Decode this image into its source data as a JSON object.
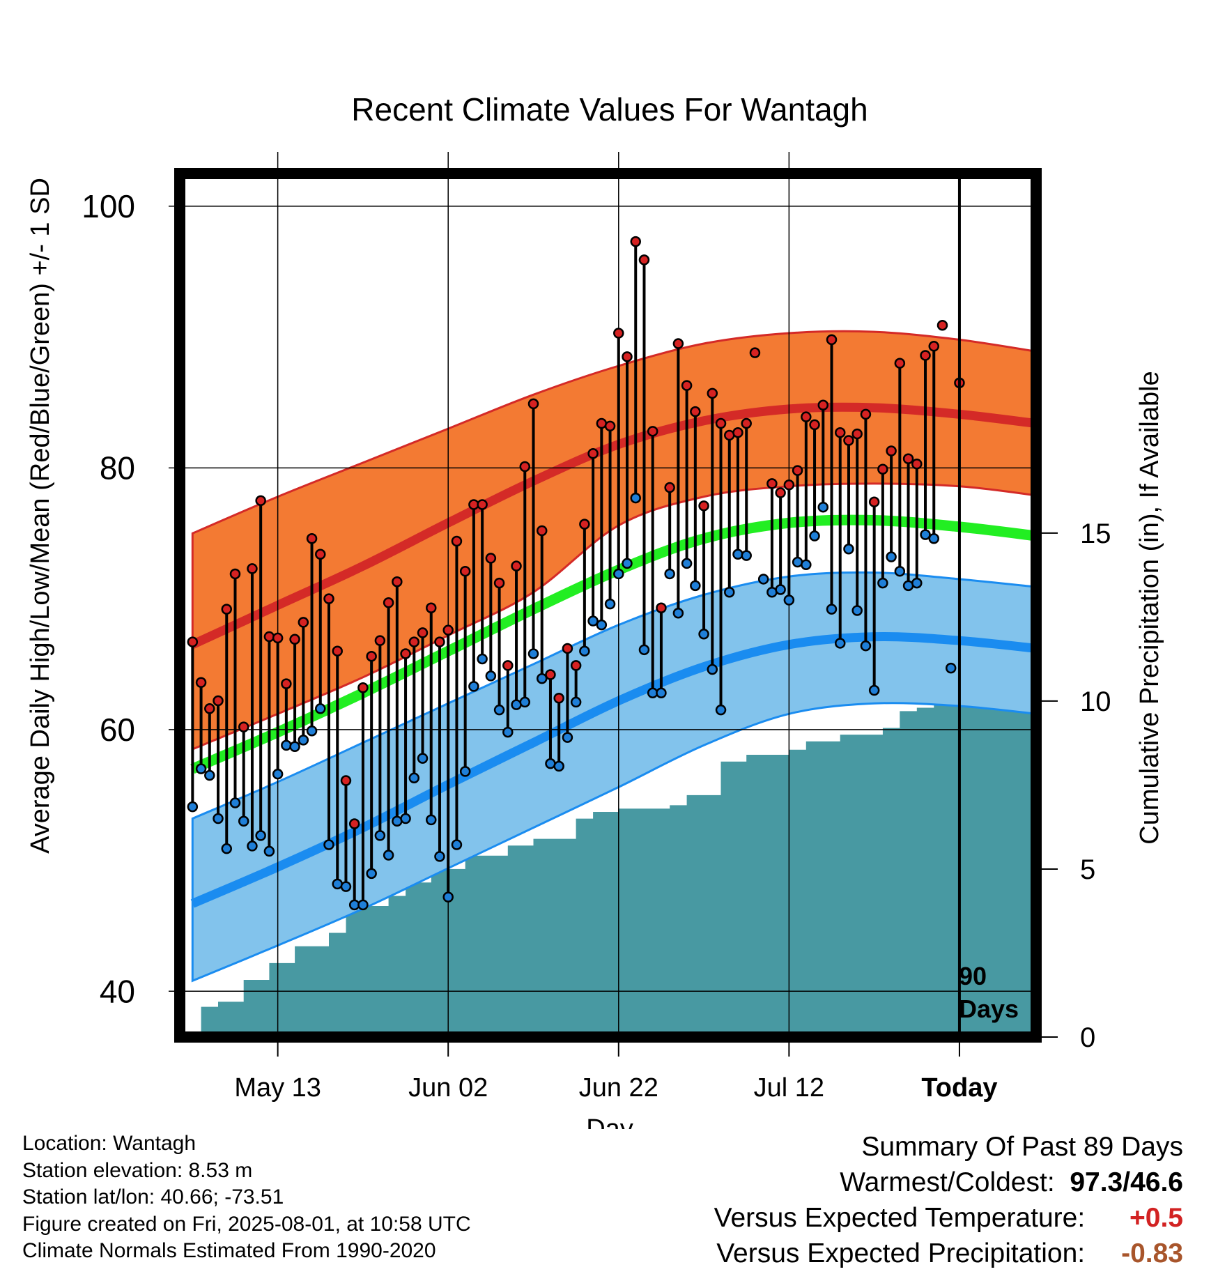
{
  "title": "Recent Climate Values For Wantagh",
  "ylabel_left": "Average Daily High/Low/Mean (Red/Blue/Green) +/- 1 SD",
  "ylabel_right": "Cumulative Precipitation (in), If Available",
  "xlabel": "Day",
  "today_label": "Today",
  "period_label_line1": "90",
  "period_label_line2": "Days",
  "info": {
    "location": "Location: Wantagh",
    "elevation": "Station elevation: 8.53 m",
    "latlon": "Station lat/lon: 40.66; -73.51",
    "created": "Figure created on Fri, 2025-08-01, at 10:58 UTC",
    "normals": "Climate Normals Estimated From 1990-2020"
  },
  "summary": {
    "heading": "Summary Of Past 89 Days",
    "extremes_label": "Warmest/Coldest:",
    "extremes_value": "97.3/46.6",
    "temp_label": "Versus Expected Temperature:",
    "temp_value": "+0.5",
    "precip_label": "Versus Expected Precipitation:",
    "precip_value": "-0.83"
  },
  "colors": {
    "high_band": "#f37a33",
    "high_line": "#d42a27",
    "mean_line": "#22ee22",
    "low_band": "#82c3ec",
    "low_line": "#1a8cf0",
    "precip": "#4899a2",
    "high_dot": "#d62222",
    "low_dot": "#1f7fd8",
    "positive": "#d22222",
    "negative": "#a8552b"
  },
  "chart_data": {
    "type": "line",
    "x_unit": "days relative to today (0 = Jul 31)",
    "xlim": [
      -91.5,
      9
    ],
    "ylim_temp": [
      36.5,
      102.5
    ],
    "ylim_precip": [
      0,
      25.7
    ],
    "yticks_temp": [
      40,
      60,
      80,
      100
    ],
    "yticks_precip": [
      0,
      5,
      10,
      15
    ],
    "x_ticks": [
      {
        "x": -80,
        "label": "May 13"
      },
      {
        "x": -60,
        "label": "Jun 02"
      },
      {
        "x": -40,
        "label": "Jun 22"
      },
      {
        "x": -20,
        "label": "Jul 12"
      },
      {
        "x": 0,
        "label": "Today"
      }
    ],
    "normals": {
      "x": [
        -90,
        -80,
        -70,
        -60,
        -50,
        -40,
        -30,
        -20,
        -10,
        0,
        9
      ],
      "high_plus_sd": [
        75.0,
        77.8,
        80.4,
        83.0,
        85.6,
        87.8,
        89.5,
        90.3,
        90.4,
        89.8,
        88.9
      ],
      "high_mean": [
        66.5,
        69.5,
        72.5,
        75.8,
        79.0,
        81.8,
        83.6,
        84.5,
        84.6,
        84.1,
        83.4
      ],
      "high_minus_sd": [
        58.5,
        61.2,
        64.0,
        67.2,
        70.5,
        75.6,
        77.8,
        78.6,
        78.8,
        78.6,
        77.9
      ],
      "mean": [
        57.0,
        59.8,
        62.8,
        66.0,
        69.2,
        72.2,
        74.6,
        75.8,
        76.0,
        75.5,
        74.8
      ],
      "low_plus_sd": [
        53.2,
        56.0,
        59.0,
        62.0,
        65.0,
        68.0,
        70.3,
        71.7,
        72.0,
        71.5,
        70.9
      ],
      "low_mean": [
        46.7,
        49.5,
        52.5,
        55.8,
        59.0,
        62.2,
        64.8,
        66.5,
        67.1,
        66.8,
        66.2
      ],
      "low_minus_sd": [
        40.8,
        43.5,
        46.3,
        49.4,
        52.5,
        55.6,
        58.8,
        61.2,
        62.0,
        61.8,
        61.2
      ]
    },
    "observations": {
      "start_x": -90,
      "high": [
        66.7,
        63.6,
        61.6,
        62.2,
        69.2,
        71.9,
        60.2,
        72.3,
        77.5,
        67.1,
        67.0,
        63.5,
        66.9,
        68.2,
        74.6,
        73.4,
        70.0,
        66.0,
        56.1,
        52.8,
        63.2,
        65.6,
        66.8,
        69.7,
        71.3,
        65.8,
        66.7,
        67.4,
        69.3,
        66.7,
        67.6,
        74.4,
        72.1,
        77.2,
        77.2,
        73.1,
        71.2,
        64.9,
        72.5,
        80.1,
        84.9,
        75.2,
        64.2,
        62.4,
        66.2,
        64.9,
        75.7,
        81.1,
        83.4,
        83.2,
        90.3,
        88.5,
        97.3,
        95.9,
        82.8,
        69.3,
        78.5,
        89.5,
        86.3,
        84.3,
        77.1,
        85.7,
        83.4,
        82.5,
        82.7,
        83.4,
        88.8,
        null,
        78.8,
        78.1,
        78.7,
        79.8,
        83.9,
        83.3,
        84.8,
        89.8,
        82.7,
        82.1,
        82.6,
        84.1,
        77.4,
        79.9,
        81.3,
        88.0,
        80.7,
        80.3,
        88.6,
        89.3,
        90.9,
        null,
        86.5
      ],
      "low": [
        54.1,
        57.0,
        56.5,
        53.2,
        50.9,
        54.4,
        53.0,
        51.1,
        51.9,
        50.7,
        56.6,
        58.8,
        58.7,
        59.2,
        59.9,
        61.6,
        51.2,
        48.2,
        48.0,
        46.6,
        46.6,
        49.0,
        51.9,
        50.4,
        53.0,
        53.2,
        56.3,
        57.8,
        53.1,
        50.3,
        47.2,
        51.2,
        56.8,
        63.3,
        65.4,
        64.1,
        61.5,
        59.8,
        61.9,
        62.1,
        65.8,
        63.9,
        57.4,
        57.2,
        59.4,
        62.1,
        66.0,
        68.3,
        68.0,
        69.6,
        71.9,
        72.7,
        77.7,
        66.1,
        62.8,
        62.8,
        71.9,
        68.9,
        72.7,
        71.0,
        67.3,
        64.6,
        61.5,
        70.5,
        73.4,
        73.3,
        null,
        71.5,
        70.5,
        70.7,
        69.9,
        72.8,
        72.6,
        74.8,
        77.0,
        69.2,
        66.6,
        73.8,
        69.1,
        66.4,
        63.0,
        71.2,
        73.2,
        72.1,
        71.0,
        71.2,
        74.9,
        74.6,
        null,
        64.7,
        null
      ]
    },
    "precip": {
      "x": [
        -90.5,
        -89,
        -87,
        -84,
        -81,
        -78,
        -74,
        -72,
        -67,
        -65,
        -62,
        -58,
        -53,
        -50,
        -45,
        -43,
        -40,
        -34,
        -32,
        -28,
        -25,
        -20,
        -18,
        -14,
        -9,
        -7,
        -5,
        -3,
        -1,
        0.5,
        8.5
      ],
      "cumulative": [
        0,
        0.9,
        1.05,
        1.7,
        2.2,
        2.7,
        3.1,
        3.9,
        4.2,
        4.6,
        5.0,
        5.4,
        5.7,
        5.9,
        6.5,
        6.7,
        6.8,
        6.9,
        7.2,
        8.2,
        8.4,
        8.55,
        8.8,
        9.0,
        9.2,
        9.7,
        9.8,
        10.3,
        10.3,
        10.3,
        10.3
      ]
    }
  }
}
